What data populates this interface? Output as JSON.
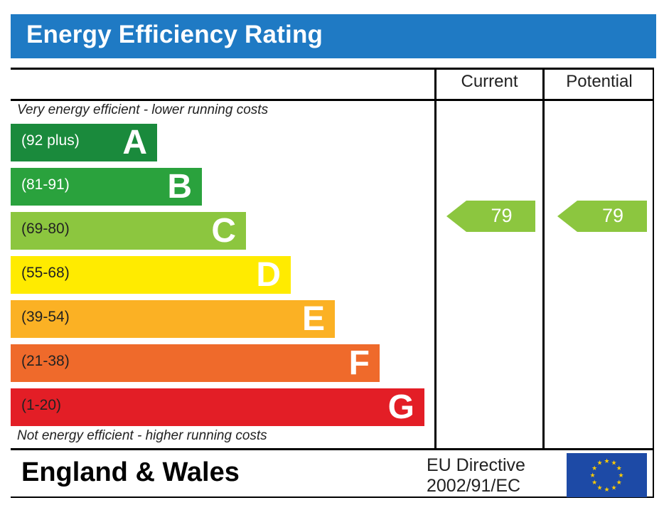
{
  "header": {
    "title": "Energy Efficiency Rating"
  },
  "columns": {
    "current": "Current",
    "potential": "Potential"
  },
  "notes": {
    "top": "Very energy efficient - lower running costs",
    "bottom": "Not energy efficient - higher running costs"
  },
  "bands": [
    {
      "letter": "A",
      "range": "(92 plus)",
      "color": "#1a8a3c",
      "text_color": "#ffffff"
    },
    {
      "letter": "B",
      "range": "(81-91)",
      "color": "#2aa23d",
      "text_color": "#ffffff"
    },
    {
      "letter": "C",
      "range": "(69-80)",
      "color": "#8cc63f",
      "text_color": "#222222"
    },
    {
      "letter": "D",
      "range": "(55-68)",
      "color": "#ffeb00",
      "text_color": "#222222"
    },
    {
      "letter": "E",
      "range": "(39-54)",
      "color": "#fbb124",
      "text_color": "#222222"
    },
    {
      "letter": "F",
      "range": "(21-38)",
      "color": "#ef6a2b",
      "text_color": "#222222"
    },
    {
      "letter": "G",
      "range": "(1-20)",
      "color": "#e31e26",
      "text_color": "#222222"
    }
  ],
  "ratings": {
    "current": {
      "value": "79",
      "color": "#8cc63f"
    },
    "potential": {
      "value": "79",
      "color": "#8cc63f"
    }
  },
  "footer": {
    "country": "England & Wales",
    "directive_line1": "EU Directive",
    "directive_line2": "2002/91/EC",
    "flag_icon": "eu-flag-icon"
  }
}
